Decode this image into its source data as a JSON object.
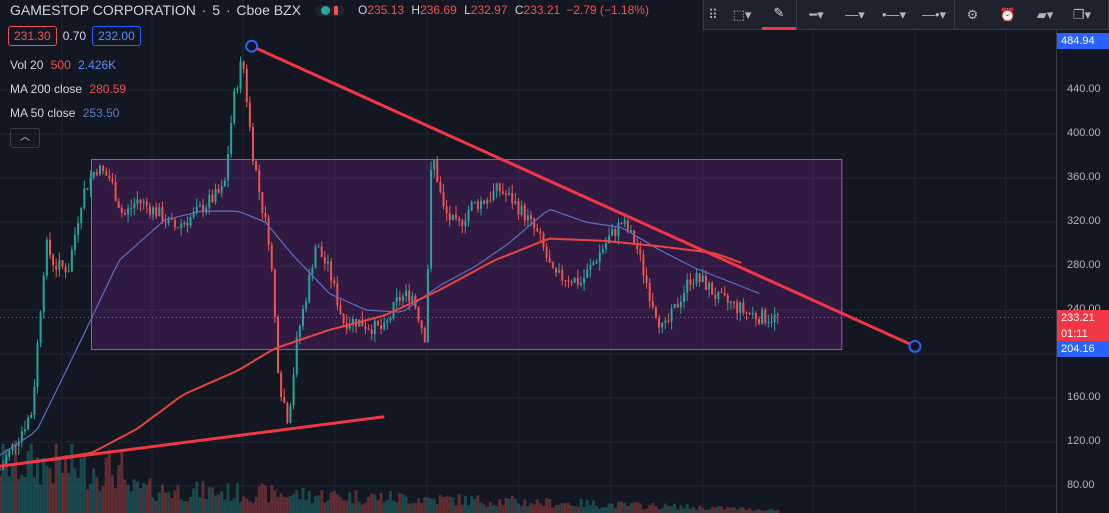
{
  "header": {
    "symbol": "GAMESTOP CORPORATION",
    "interval": "5",
    "exchange": "Cboe BZX",
    "ohlc": {
      "o_label": "O",
      "o": "235.13",
      "h_label": "H",
      "h": "236.69",
      "l_label": "L",
      "l": "232.97",
      "c_label": "C",
      "c": "233.21"
    },
    "change": "−2.79 (−1.18%)"
  },
  "quote": {
    "bid": "231.30",
    "spread": "0.70",
    "ask": "232.00"
  },
  "indicators": {
    "vol": {
      "name": "Vol 20",
      "v1": "500",
      "v2": "2.426K",
      "c1": "#ef5350",
      "c2": "#5b8bff"
    },
    "ma200": {
      "name": "MA 200 close",
      "value": "280.59",
      "color": "#ef5350"
    },
    "ma50": {
      "name": "MA 50 close",
      "value": "253.50",
      "color": "#5b7bd0"
    }
  },
  "collapse_glyph": "︿",
  "toolbar": {
    "items": [
      {
        "name": "drag-handle-icon",
        "glyph": "⠿"
      },
      {
        "name": "select-shape-icon",
        "glyph": "⬚▾"
      },
      {
        "name": "brush-icon",
        "glyph": "✎"
      },
      {
        "name": "line-width-icon",
        "glyph": "━▾"
      },
      {
        "name": "line-style-icon",
        "glyph": "—▾"
      },
      {
        "name": "line-extend-icon",
        "glyph": "•—▾"
      },
      {
        "name": "line-end-icon",
        "glyph": "—•▾"
      },
      {
        "name": "gear-icon",
        "glyph": "⚙"
      },
      {
        "name": "add-alert-icon",
        "glyph": "⏰"
      },
      {
        "name": "layers-icon",
        "glyph": "▰▾"
      },
      {
        "name": "clone-icon",
        "glyph": "❐▾"
      }
    ]
  },
  "colors": {
    "bg": "#131722",
    "up": "#26a69a",
    "down": "#ef5350",
    "trend": "#f23645",
    "ma200": "#e8453c",
    "ma50": "#5b6fc6",
    "rect": "#9c27b0"
  },
  "price_labels": {
    "top": "484.94",
    "last": "233.21",
    "countdown": "01:11",
    "rect_low": "204.16"
  },
  "chart_data": {
    "type": "candlestick",
    "title": "",
    "xlabel": "",
    "ylabel": "",
    "ylim": [
      48,
      500
    ],
    "yticks": [
      80,
      120,
      160,
      200,
      240,
      280,
      320,
      360,
      400,
      440
    ],
    "grid": true,
    "last_price": 233.21,
    "anchors": [
      {
        "t": 0.0,
        "p": 95
      },
      {
        "t": 0.02,
        "p": 125
      },
      {
        "t": 0.035,
        "p": 148
      },
      {
        "t": 0.05,
        "p": 300
      },
      {
        "t": 0.06,
        "p": 280
      },
      {
        "t": 0.075,
        "p": 278
      },
      {
        "t": 0.09,
        "p": 345
      },
      {
        "t": 0.105,
        "p": 370
      },
      {
        "t": 0.12,
        "p": 360
      },
      {
        "t": 0.135,
        "p": 325
      },
      {
        "t": 0.15,
        "p": 340
      },
      {
        "t": 0.17,
        "p": 330
      },
      {
        "t": 0.19,
        "p": 315
      },
      {
        "t": 0.21,
        "p": 325
      },
      {
        "t": 0.23,
        "p": 340
      },
      {
        "t": 0.245,
        "p": 350
      },
      {
        "t": 0.255,
        "p": 430
      },
      {
        "t": 0.265,
        "p": 470
      },
      {
        "t": 0.275,
        "p": 390
      },
      {
        "t": 0.285,
        "p": 340
      },
      {
        "t": 0.295,
        "p": 300
      },
      {
        "t": 0.305,
        "p": 175
      },
      {
        "t": 0.315,
        "p": 140
      },
      {
        "t": 0.325,
        "p": 215
      },
      {
        "t": 0.335,
        "p": 255
      },
      {
        "t": 0.345,
        "p": 300
      },
      {
        "t": 0.36,
        "p": 275
      },
      {
        "t": 0.375,
        "p": 230
      },
      {
        "t": 0.39,
        "p": 230
      },
      {
        "t": 0.405,
        "p": 225
      },
      {
        "t": 0.42,
        "p": 222
      },
      {
        "t": 0.435,
        "p": 250
      },
      {
        "t": 0.45,
        "p": 255
      },
      {
        "t": 0.465,
        "p": 215
      },
      {
        "t": 0.472,
        "p": 385
      },
      {
        "t": 0.485,
        "p": 330
      },
      {
        "t": 0.5,
        "p": 315
      },
      {
        "t": 0.515,
        "p": 335
      },
      {
        "t": 0.53,
        "p": 340
      },
      {
        "t": 0.545,
        "p": 350
      },
      {
        "t": 0.56,
        "p": 340
      },
      {
        "t": 0.575,
        "p": 325
      },
      {
        "t": 0.59,
        "p": 305
      },
      {
        "t": 0.605,
        "p": 270
      },
      {
        "t": 0.62,
        "p": 270
      },
      {
        "t": 0.635,
        "p": 265
      },
      {
        "t": 0.65,
        "p": 285
      },
      {
        "t": 0.665,
        "p": 305
      },
      {
        "t": 0.68,
        "p": 320
      },
      {
        "t": 0.695,
        "p": 300
      },
      {
        "t": 0.71,
        "p": 255
      },
      {
        "t": 0.725,
        "p": 220
      },
      {
        "t": 0.74,
        "p": 245
      },
      {
        "t": 0.755,
        "p": 270
      },
      {
        "t": 0.77,
        "p": 265
      },
      {
        "t": 0.785,
        "p": 250
      },
      {
        "t": 0.8,
        "p": 245
      },
      {
        "t": 0.815,
        "p": 238
      },
      {
        "t": 0.83,
        "p": 234
      },
      {
        "t": 0.85,
        "p": 233
      }
    ],
    "ma200": [
      {
        "t": 0.0,
        "p": 98
      },
      {
        "t": 0.1,
        "p": 110
      },
      {
        "t": 0.15,
        "p": 132
      },
      {
        "t": 0.2,
        "p": 163
      },
      {
        "t": 0.26,
        "p": 185
      },
      {
        "t": 0.3,
        "p": 205
      },
      {
        "t": 0.36,
        "p": 222
      },
      {
        "t": 0.42,
        "p": 235
      },
      {
        "t": 0.48,
        "p": 258
      },
      {
        "t": 0.54,
        "p": 285
      },
      {
        "t": 0.6,
        "p": 305
      },
      {
        "t": 0.66,
        "p": 303
      },
      {
        "t": 0.72,
        "p": 298
      },
      {
        "t": 0.78,
        "p": 292
      },
      {
        "t": 0.81,
        "p": 283
      }
    ],
    "ma50": [
      {
        "t": 0.0,
        "p": 108
      },
      {
        "t": 0.04,
        "p": 130
      },
      {
        "t": 0.09,
        "p": 215
      },
      {
        "t": 0.13,
        "p": 285
      },
      {
        "t": 0.18,
        "p": 322
      },
      {
        "t": 0.22,
        "p": 330
      },
      {
        "t": 0.26,
        "p": 330
      },
      {
        "t": 0.29,
        "p": 320
      },
      {
        "t": 0.32,
        "p": 290
      },
      {
        "t": 0.36,
        "p": 255
      },
      {
        "t": 0.4,
        "p": 240
      },
      {
        "t": 0.44,
        "p": 238
      },
      {
        "t": 0.48,
        "p": 262
      },
      {
        "t": 0.52,
        "p": 280
      },
      {
        "t": 0.555,
        "p": 300
      },
      {
        "t": 0.6,
        "p": 332
      },
      {
        "t": 0.64,
        "p": 320
      },
      {
        "t": 0.68,
        "p": 315
      },
      {
        "t": 0.72,
        "p": 295
      },
      {
        "t": 0.76,
        "p": 278
      },
      {
        "t": 0.8,
        "p": 265
      },
      {
        "t": 0.83,
        "p": 255
      }
    ],
    "trendlines": [
      {
        "from": {
          "t": 0.275,
          "p": 480
        },
        "to": {
          "t": 1.0,
          "p": 207
        },
        "handles": true
      },
      {
        "from": {
          "t": 0.0,
          "p": 98
        },
        "to": {
          "t": 0.42,
          "p": 143
        },
        "handles": false
      }
    ],
    "range_box": {
      "t_start": 0.1,
      "t_end": 0.92,
      "p_low": 204.16,
      "p_high": 377
    }
  }
}
